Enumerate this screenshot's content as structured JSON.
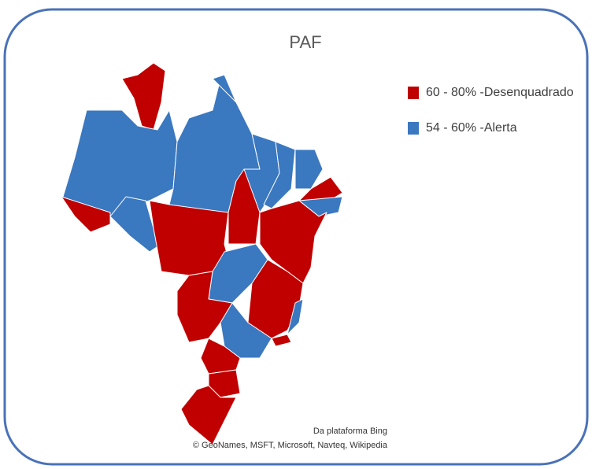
{
  "title": "PAF",
  "legend": [
    {
      "name": "60 - 80% -Desenquadrado",
      "color": "#c00000"
    },
    {
      "name": "54 - 60% -Alerta",
      "color": "#3a78c0"
    }
  ],
  "attribution": [
    "Da plataforma Bing",
    "© GeoNames, MSFT, Microsoft, Navteq, Wikipedia"
  ]
}
